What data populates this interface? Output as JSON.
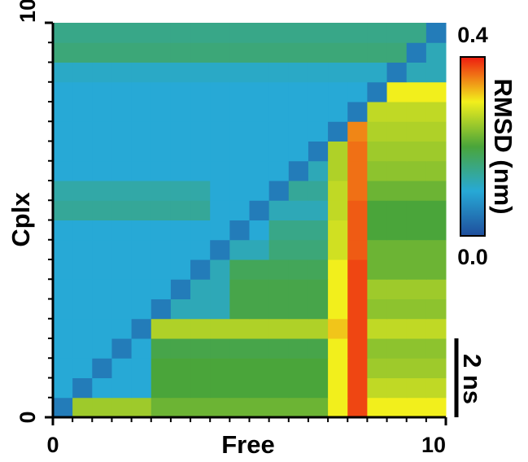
{
  "chart_data": {
    "type": "heatmap",
    "x_label": "Free",
    "y_label": "Cplx",
    "xlim": [
      0,
      10
    ],
    "ylim": [
      0,
      10
    ],
    "xticks": [
      0,
      10
    ],
    "yticks": [
      0,
      10
    ],
    "xminorticks": [
      0.5,
      1,
      1.5,
      2,
      2.5,
      3,
      3.5,
      4,
      4.5,
      5,
      5.5,
      6,
      6.5,
      7,
      7.5,
      8,
      8.5,
      9,
      9.5
    ],
    "yminorticks": [
      0.5,
      1,
      1.5,
      2,
      2.5,
      3,
      3.5,
      4,
      4.5,
      5,
      5.5,
      6,
      6.5,
      7,
      7.5,
      8,
      8.5,
      9,
      9.5
    ],
    "colorbar": {
      "label": "RMSD (nm)",
      "lim": [
        0,
        0.4
      ],
      "ticks": [
        {
          "value": 0,
          "label": "0.0"
        },
        0.4
      ],
      "colors": [
        "#1f4e9c",
        "#27a9d6",
        "#4aa53a",
        "#f2ef1c",
        "#ee1c10"
      ]
    },
    "scale_bar": {
      "label": "2 ns",
      "length": 2
    },
    "z": [
      [
        0.05,
        0.25,
        0.25,
        0.25,
        0.25,
        0.22,
        0.22,
        0.22,
        0.22,
        0.22,
        0.22,
        0.22,
        0.22,
        0.22,
        0.3,
        0.38,
        0.3,
        0.3,
        0.3,
        0.3
      ],
      [
        0.1,
        0.05,
        0.1,
        0.1,
        0.1,
        0.2,
        0.2,
        0.2,
        0.2,
        0.2,
        0.2,
        0.2,
        0.2,
        0.2,
        0.3,
        0.38,
        0.27,
        0.27,
        0.27,
        0.27
      ],
      [
        0.1,
        0.1,
        0.05,
        0.1,
        0.1,
        0.2,
        0.2,
        0.2,
        0.2,
        0.2,
        0.2,
        0.2,
        0.2,
        0.2,
        0.3,
        0.38,
        0.25,
        0.25,
        0.25,
        0.25
      ],
      [
        0.1,
        0.1,
        0.1,
        0.05,
        0.1,
        0.19,
        0.19,
        0.19,
        0.19,
        0.19,
        0.19,
        0.19,
        0.19,
        0.19,
        0.3,
        0.38,
        0.24,
        0.24,
        0.24,
        0.24
      ],
      [
        0.1,
        0.1,
        0.1,
        0.1,
        0.05,
        0.26,
        0.26,
        0.26,
        0.26,
        0.26,
        0.26,
        0.26,
        0.26,
        0.26,
        0.32,
        0.38,
        0.27,
        0.27,
        0.27,
        0.27
      ],
      [
        0.1,
        0.1,
        0.1,
        0.1,
        0.1,
        0.05,
        0.12,
        0.12,
        0.12,
        0.19,
        0.19,
        0.19,
        0.19,
        0.19,
        0.3,
        0.38,
        0.24,
        0.24,
        0.24,
        0.24
      ],
      [
        0.1,
        0.1,
        0.1,
        0.1,
        0.1,
        0.1,
        0.05,
        0.12,
        0.12,
        0.19,
        0.19,
        0.19,
        0.19,
        0.19,
        0.3,
        0.38,
        0.25,
        0.25,
        0.25,
        0.25
      ],
      [
        0.1,
        0.1,
        0.1,
        0.1,
        0.1,
        0.1,
        0.1,
        0.05,
        0.12,
        0.18,
        0.18,
        0.18,
        0.18,
        0.18,
        0.3,
        0.38,
        0.22,
        0.22,
        0.22,
        0.22
      ],
      [
        0.1,
        0.1,
        0.1,
        0.1,
        0.1,
        0.1,
        0.1,
        0.1,
        0.05,
        0.12,
        0.12,
        0.16,
        0.16,
        0.16,
        0.28,
        0.37,
        0.22,
        0.22,
        0.22,
        0.22
      ],
      [
        0.1,
        0.1,
        0.1,
        0.1,
        0.1,
        0.1,
        0.1,
        0.1,
        0.1,
        0.05,
        0.1,
        0.15,
        0.15,
        0.15,
        0.28,
        0.37,
        0.2,
        0.2,
        0.2,
        0.2
      ],
      [
        0.14,
        0.14,
        0.14,
        0.14,
        0.14,
        0.14,
        0.14,
        0.14,
        0.1,
        0.1,
        0.05,
        0.12,
        0.12,
        0.12,
        0.27,
        0.37,
        0.2,
        0.2,
        0.2,
        0.2
      ],
      [
        0.13,
        0.13,
        0.13,
        0.13,
        0.13,
        0.13,
        0.13,
        0.13,
        0.1,
        0.1,
        0.1,
        0.05,
        0.14,
        0.14,
        0.27,
        0.36,
        0.22,
        0.22,
        0.22,
        0.22
      ],
      [
        0.1,
        0.1,
        0.1,
        0.1,
        0.1,
        0.1,
        0.1,
        0.1,
        0.1,
        0.1,
        0.1,
        0.1,
        0.05,
        0.12,
        0.26,
        0.36,
        0.24,
        0.24,
        0.24,
        0.24
      ],
      [
        0.1,
        0.1,
        0.1,
        0.1,
        0.1,
        0.1,
        0.1,
        0.1,
        0.1,
        0.1,
        0.1,
        0.1,
        0.1,
        0.05,
        0.26,
        0.36,
        0.25,
        0.25,
        0.25,
        0.25
      ],
      [
        0.1,
        0.1,
        0.1,
        0.1,
        0.1,
        0.1,
        0.1,
        0.1,
        0.1,
        0.1,
        0.1,
        0.1,
        0.1,
        0.1,
        0.05,
        0.35,
        0.26,
        0.26,
        0.26,
        0.26
      ],
      [
        0.1,
        0.1,
        0.1,
        0.1,
        0.1,
        0.1,
        0.1,
        0.1,
        0.1,
        0.1,
        0.1,
        0.1,
        0.1,
        0.1,
        0.1,
        0.05,
        0.27,
        0.27,
        0.27,
        0.27
      ],
      [
        0.1,
        0.1,
        0.1,
        0.1,
        0.1,
        0.1,
        0.1,
        0.1,
        0.1,
        0.1,
        0.1,
        0.1,
        0.1,
        0.1,
        0.1,
        0.1,
        0.05,
        0.3,
        0.3,
        0.3
      ],
      [
        0.11,
        0.11,
        0.11,
        0.11,
        0.11,
        0.11,
        0.11,
        0.11,
        0.11,
        0.11,
        0.11,
        0.11,
        0.11,
        0.11,
        0.11,
        0.11,
        0.11,
        0.05,
        0.12,
        0.12
      ],
      [
        0.16,
        0.16,
        0.16,
        0.16,
        0.16,
        0.16,
        0.16,
        0.16,
        0.16,
        0.16,
        0.16,
        0.16,
        0.16,
        0.16,
        0.16,
        0.16,
        0.16,
        0.16,
        0.05,
        0.12
      ],
      [
        0.15,
        0.15,
        0.15,
        0.15,
        0.15,
        0.15,
        0.15,
        0.15,
        0.15,
        0.15,
        0.15,
        0.15,
        0.15,
        0.15,
        0.15,
        0.15,
        0.15,
        0.15,
        0.15,
        0.05
      ]
    ]
  }
}
